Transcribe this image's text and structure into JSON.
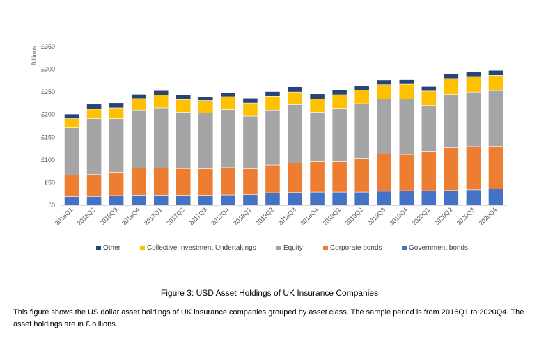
{
  "chart_data": {
    "type": "bar",
    "stacked": true,
    "title": "",
    "xlabel": "",
    "ylabel": "Billions",
    "ylim": [
      0,
      350
    ],
    "yticks": [
      0,
      50,
      100,
      150,
      200,
      250,
      300,
      350
    ],
    "ytick_labels": [
      "£0",
      "£50",
      "£100",
      "£150",
      "£200",
      "£250",
      "£300",
      "£350"
    ],
    "grid": false,
    "legend_position": "bottom",
    "categories": [
      "2016Q1",
      "2016Q2",
      "2016Q3",
      "2016Q4",
      "2017Q1",
      "2017Q2",
      "2017Q3",
      "2017Q4",
      "2018Q1",
      "2018Q2",
      "2018Q3",
      "2018Q4",
      "2019Q1",
      "2019Q2",
      "2019Q3",
      "2019Q4",
      "2020Q1",
      "2020Q2",
      "2020Q3",
      "2020Q4"
    ],
    "series": [
      {
        "name": "Government bonds",
        "color": "#4472C4",
        "values": [
          19,
          19.5,
          21.5,
          22.5,
          22.5,
          22,
          22,
          23,
          23.5,
          27.5,
          28,
          29,
          29,
          29,
          31,
          32,
          32,
          32.5,
          34,
          36
        ]
      },
      {
        "name": "Corporate bonds",
        "color": "#ED7D31",
        "values": [
          48,
          48.5,
          51.5,
          59.5,
          59.5,
          59,
          58.5,
          60,
          57,
          61.5,
          65,
          67,
          67,
          74.5,
          82,
          80,
          87,
          94,
          95,
          94
        ]
      },
      {
        "name": "Equity",
        "color": "#A5A5A5",
        "values": [
          104,
          123,
          118,
          128,
          133,
          124,
          123,
          128,
          116,
          121,
          129,
          109,
          118,
          120.5,
          121,
          122,
          101,
          118,
          121,
          123
        ]
      },
      {
        "name": "Collective Investment Undertakings",
        "color": "#FFC000",
        "values": [
          20,
          21,
          24,
          25,
          28,
          28,
          27.5,
          28.5,
          29,
          30.5,
          28,
          29,
          30,
          30,
          32,
          33,
          32,
          35,
          34,
          33.5
        ]
      },
      {
        "name": "Other",
        "color": "#264478",
        "values": [
          10,
          11,
          11,
          10,
          10,
          10,
          8.5,
          8.5,
          10.5,
          10.5,
          11.5,
          12,
          10,
          9,
          10.5,
          10,
          10,
          10.5,
          10,
          11
        ]
      }
    ],
    "legend_order": [
      "Other",
      "Collective Investment Undertakings",
      "Equity",
      "Corporate bonds",
      "Government bonds"
    ]
  },
  "legend": [
    {
      "label": "Other",
      "color": "#264478"
    },
    {
      "label": "Collective Investment Undertakings",
      "color": "#FFC000"
    },
    {
      "label": "Equity",
      "color": "#A5A5A5"
    },
    {
      "label": "Corporate bonds",
      "color": "#ED7D31"
    },
    {
      "label": "Government bonds",
      "color": "#4472C4"
    }
  ],
  "caption": {
    "title": "Figure 3: USD Asset Holdings of UK Insurance Companies",
    "text": "This figure shows the US dollar asset holdings of UK insurance companies grouped by asset class. The sample period is from 2016Q1 to 2020Q4. The asset holdings are in £ billions."
  }
}
